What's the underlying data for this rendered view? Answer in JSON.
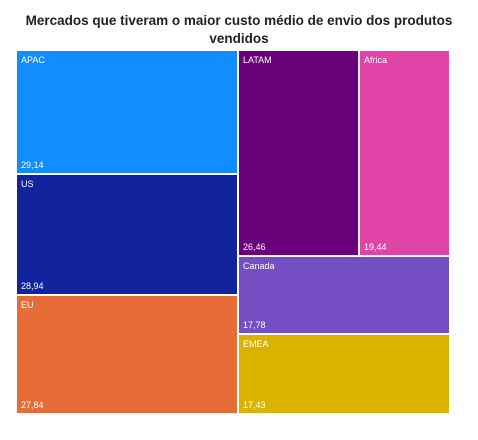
{
  "chart_data": {
    "type": "treemap",
    "title_lines": [
      "Mercados que tiveram o maior custo médio de envio dos produtos",
      "vendidos"
    ],
    "items": [
      {
        "label": "APAC",
        "value_text": "29,14",
        "value": 29.14,
        "color": "#118DFF"
      },
      {
        "label": "US",
        "value_text": "28,94",
        "value": 28.94,
        "color": "#12239E"
      },
      {
        "label": "EU",
        "value_text": "27,84",
        "value": 27.84,
        "color": "#E66C37"
      },
      {
        "label": "LATAM",
        "value_text": "26,46",
        "value": 26.46,
        "color": "#6B007B"
      },
      {
        "label": "Africa",
        "value_text": "19,44",
        "value": 19.44,
        "color": "#E044A7"
      },
      {
        "label": "Canada",
        "value_text": "17,78",
        "value": 17.78,
        "color": "#744EC2"
      },
      {
        "label": "EMEA",
        "value_text": "17,43",
        "value": 17.43,
        "color": "#D9B300"
      }
    ]
  }
}
